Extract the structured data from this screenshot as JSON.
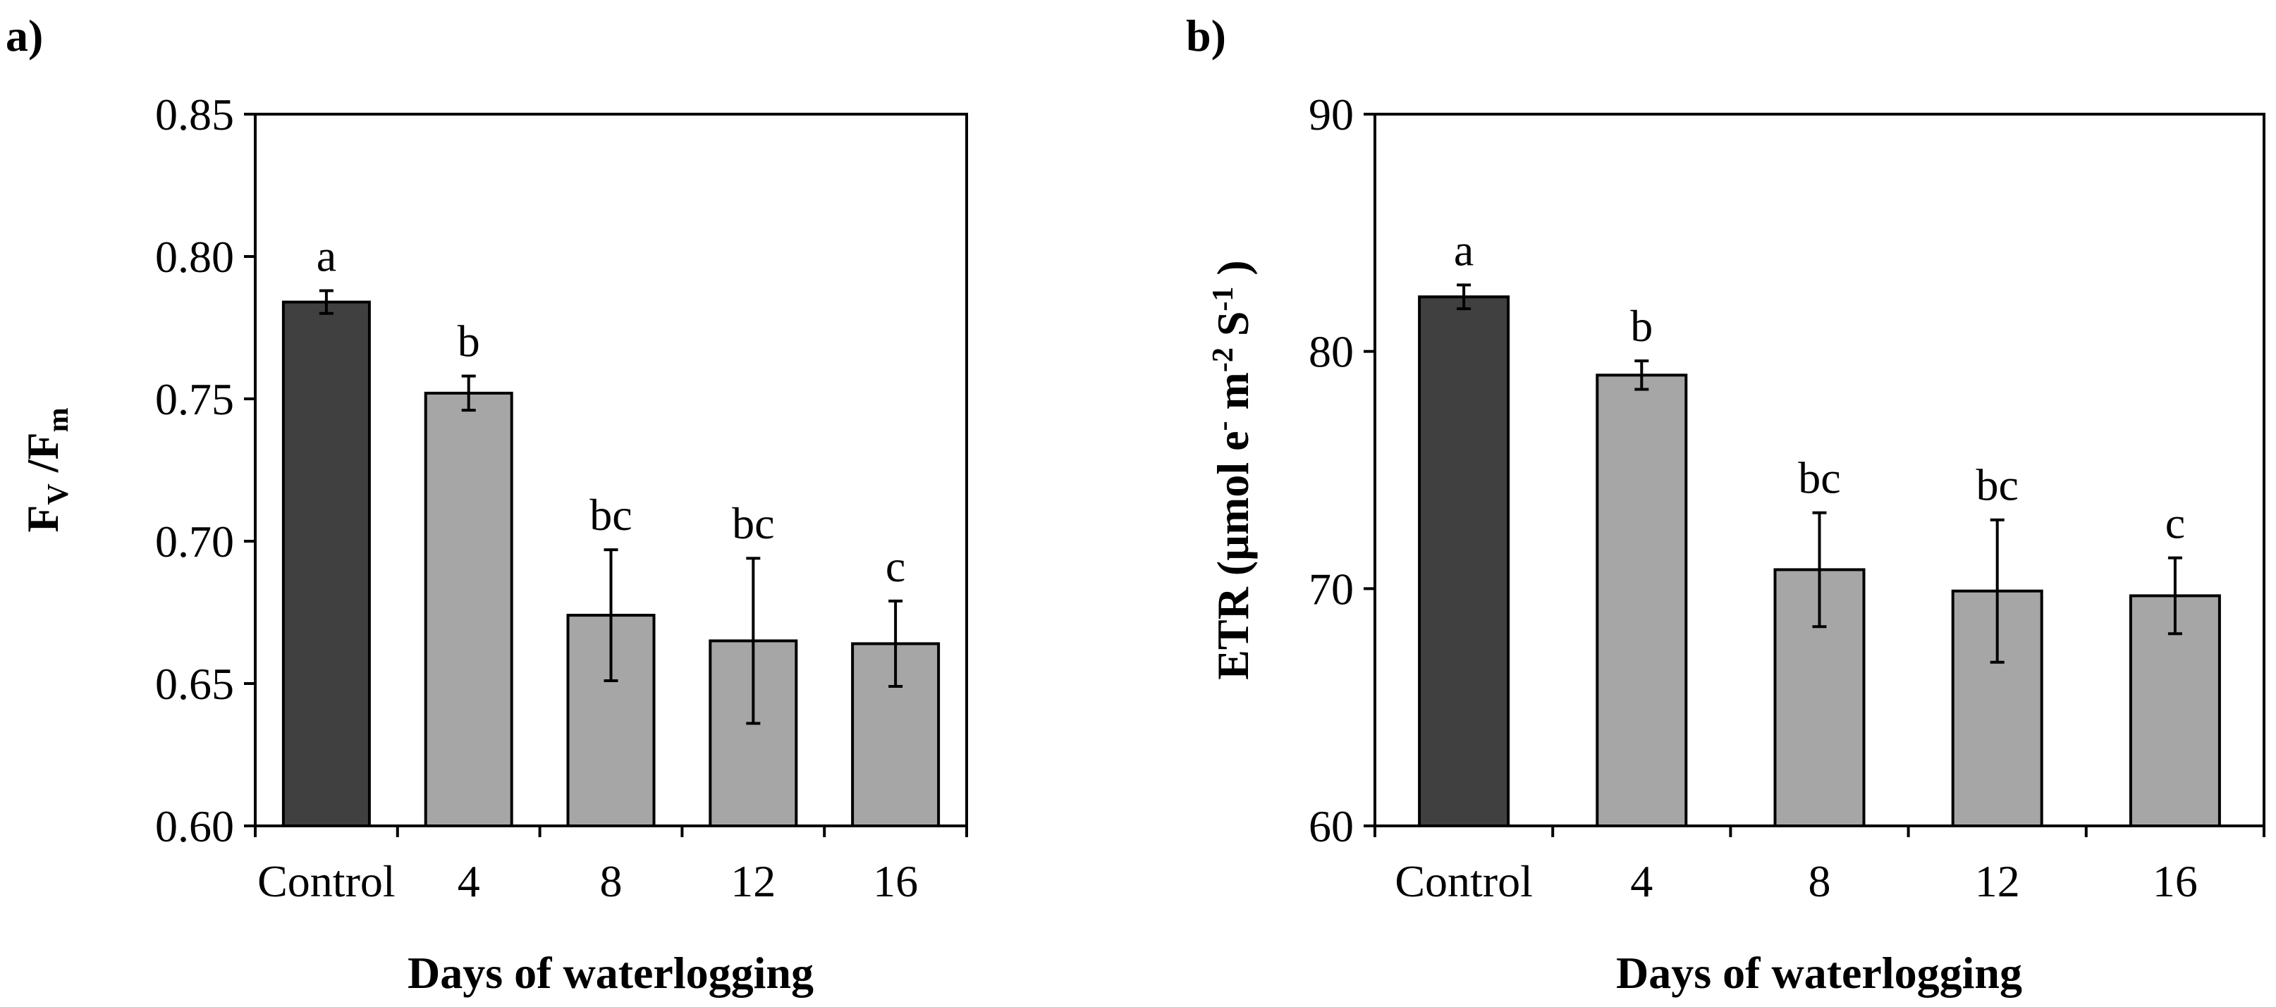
{
  "chart_data": [
    {
      "type": "bar",
      "panel_label": "a)",
      "categories": [
        "Control",
        "4",
        "8",
        "12",
        "16"
      ],
      "values": [
        0.784,
        0.752,
        0.674,
        0.665,
        0.664
      ],
      "errors": [
        0.004,
        0.006,
        0.023,
        0.029,
        0.015
      ],
      "significance": [
        "a",
        "b",
        "bc",
        "bc",
        "c"
      ],
      "bar_colors": [
        "#404040",
        "#a6a6a6",
        "#a6a6a6",
        "#a6a6a6",
        "#a6a6a6"
      ],
      "ylim": [
        0.6,
        0.85
      ],
      "yticks": [
        "0.60",
        "0.65",
        "0.70",
        "0.75",
        "0.80",
        "0.85"
      ],
      "xlabel": "Days of waterlogging",
      "ylabel": {
        "main1": "F",
        "sub1": "V",
        "main2": " /F",
        "sub2": "m"
      },
      "grid": false
    },
    {
      "type": "bar",
      "panel_label": "b)",
      "categories": [
        "Control",
        "4",
        "8",
        "12",
        "16"
      ],
      "values": [
        82.3,
        79.0,
        70.8,
        69.9,
        69.7
      ],
      "errors": [
        0.5,
        0.6,
        2.4,
        3.0,
        1.6
      ],
      "significance": [
        "a",
        "b",
        "bc",
        "bc",
        "c"
      ],
      "bar_colors": [
        "#404040",
        "#a6a6a6",
        "#a6a6a6",
        "#a6a6a6",
        "#a6a6a6"
      ],
      "ylim": [
        60,
        90
      ],
      "yticks": [
        "60",
        "70",
        "80",
        "90"
      ],
      "xlabel": "Days of waterlogging",
      "ylabel": {
        "part1": "ETR (µmol e",
        "sup1": "-",
        "part2": " m",
        "sup2": "-2",
        "part3": " S",
        "sup3": "-1",
        "part4": " )"
      },
      "grid": false
    }
  ]
}
